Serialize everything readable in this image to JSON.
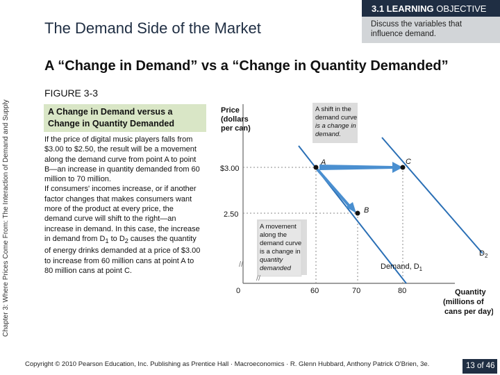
{
  "objective": {
    "label_bold": "3.1 LEARNING",
    "label_rest": "OBJECTIVE",
    "text": "Discuss the variables that influence demand."
  },
  "slide_title": "The Demand Side of the Market",
  "subtitle": "A “Change in Demand” vs a “Change in Quantity Demanded”",
  "side_text": "Chapter 3: Where Prices Come From: The Interaction of Demand and Supply",
  "figure_label": "FIGURE 3-3",
  "caption_lines": [
    "A Change in Demand versus a",
    "Change in Quantity Demanded"
  ],
  "body": {
    "p1": "If the price of digital music players falls from $3.00 to $2.50, the result will be a movement along the demand curve from point A to point B—an increase in quantity demanded from 60 million to 70 million.",
    "p2_parts": [
      "If consumers' incomes increase, or if another factor changes that makes consumers want more of the product at every price, the demand curve will shift to the right—an increase in demand. In this case, the increase in demand from D",
      "1",
      " to D",
      "2",
      " causes the quantity of energy drinks demanded at a price of $3.00 to increase from 60 million cans at point A to 80 million cans at point C."
    ]
  },
  "chart_data": {
    "type": "line",
    "title": "A Change in Demand versus a Change in Quantity Demanded",
    "ylabel_lines": [
      "Price",
      "(dollars",
      "per can)"
    ],
    "xlabel_lines": [
      "Quantity",
      "(millions of",
      "cans per day)"
    ],
    "x_ticks": [
      "0",
      "60",
      "70",
      "80"
    ],
    "x_tick_values": [
      0,
      60,
      70,
      80
    ],
    "y_ticks": [
      "$3.00",
      "2.50",
      "0"
    ],
    "y_tick_values": [
      3.0,
      2.5,
      0
    ],
    "series": [
      {
        "name": "Demand, D1",
        "label_main": "Demand, D",
        "label_sub": "1",
        "points": [
          [
            60,
            3.0
          ],
          [
            70,
            2.5
          ]
        ]
      },
      {
        "name": "D2",
        "label_main": "D",
        "label_sub": "2",
        "points": [
          [
            80,
            3.0
          ]
        ]
      }
    ],
    "points": [
      {
        "label": "A",
        "x": 60,
        "y": 3.0
      },
      {
        "label": "B",
        "x": 70,
        "y": 2.5
      },
      {
        "label": "C",
        "x": 80,
        "y": 3.0
      }
    ],
    "annotations": [
      {
        "id": "shift",
        "lines": [
          "A shift in the",
          "demand curve",
          "is a change in",
          "demand."
        ]
      },
      {
        "id": "movement",
        "lines": [
          "A movement",
          "along the",
          "demand curve",
          "is a change in",
          "quantity",
          "demanded"
        ]
      }
    ],
    "colors": {
      "curve": "#2a6fb5",
      "arrow": "#4a8fd0",
      "callout": "#dcdcdc",
      "point": "#111111"
    }
  },
  "footer": "Copyright © 2010 Pearson Education, Inc. Publishing as Prentice Hall · Macroeconomics · R. Glenn Hubbard, Anthony Patrick O'Brien, 3e.",
  "page": "13 of 46"
}
